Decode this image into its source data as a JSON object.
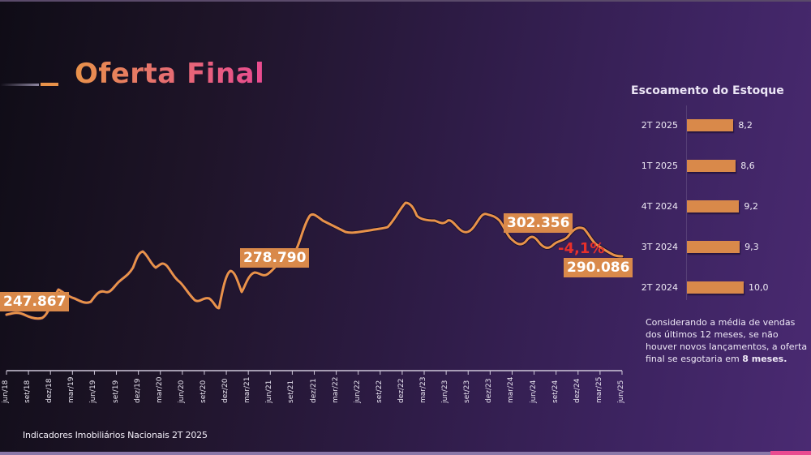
{
  "header": {
    "title_part1": "Oferta ",
    "title_part2": "Final"
  },
  "chart_data": [
    {
      "type": "line",
      "title": "Oferta Final",
      "xlabel": "",
      "ylabel": "",
      "categories": [
        "jun/18",
        "set/18",
        "dez/18",
        "mar/19",
        "jun/19",
        "set/19",
        "dez/19",
        "mar/20",
        "jun/20",
        "set/20",
        "dez/20",
        "mar/21",
        "jun/21",
        "set/21",
        "dez/21",
        "mar/22",
        "jun/22",
        "set/22",
        "dez/22",
        "mar/23",
        "jun/23",
        "set/23",
        "dez/23",
        "mar/24",
        "jun/24",
        "set/24",
        "dez/24",
        "mar/25",
        "jun/25"
      ],
      "series": [
        {
          "name": "Oferta Final",
          "color": "#e8924a",
          "values": [
            247867,
            246500,
            252000,
            254500,
            255000,
            262000,
            267000,
            262000,
            253500,
            248000,
            263000,
            264000,
            278790,
            298000,
            297000,
            295000,
            296500,
            305000,
            300000,
            299500,
            296000,
            302000,
            302356,
            294000,
            293000,
            296000,
            294500,
            291000,
            290086
          ]
        }
      ],
      "annotations": [
        {
          "label": "247.867",
          "x": "jun/18"
        },
        {
          "label": "278.790",
          "x": "jun/21"
        },
        {
          "label": "302.356",
          "x": "dez/23"
        },
        {
          "label": "290.086",
          "x": "jun/25"
        },
        {
          "label": "-4,1%",
          "color": "#e8302a"
        }
      ],
      "grid": false,
      "legend": "none"
    },
    {
      "type": "bar",
      "orientation": "horizontal",
      "title": "Escoamento do Estoque",
      "categories": [
        "2T 2025",
        "1T 2025",
        "4T 2024",
        "3T 2024",
        "2T 2024"
      ],
      "values": [
        8.2,
        8.6,
        9.2,
        9.3,
        10.0
      ],
      "value_labels": [
        "8,2",
        "8,6",
        "9,2",
        "9,3",
        "10,0"
      ],
      "color": "#d9894a"
    }
  ],
  "line_chart": {
    "labels": {
      "start": "247.867",
      "mid": "278.790",
      "peak": "302.356",
      "end": "290.086",
      "change": "-4,1%"
    },
    "x_ticks": [
      "jun/18",
      "set/18",
      "dez/18",
      "mar/19",
      "jun/19",
      "set/19",
      "dez/19",
      "mar/20",
      "jun/20",
      "set/20",
      "dez/20",
      "mar/21",
      "jun/21",
      "set/21",
      "dez/21",
      "mar/22",
      "jun/22",
      "set/22",
      "dez/22",
      "mar/23",
      "jun/23",
      "set/23",
      "dez/23",
      "mar/24",
      "jun/24",
      "set/24",
      "dez/24",
      "mar/25",
      "jun/25"
    ]
  },
  "sidebar": {
    "title": "Escoamento do Estoque",
    "bars": [
      {
        "label": "2T 2025",
        "value": "8,2",
        "num": 8.2
      },
      {
        "label": "1T 2025",
        "value": "8,6",
        "num": 8.6
      },
      {
        "label": "4T 2024",
        "value": "9,2",
        "num": 9.2
      },
      {
        "label": "3T 2024",
        "value": "9,3",
        "num": 9.3
      },
      {
        "label": "2T 2024",
        "value": "10,0",
        "num": 10.0
      }
    ],
    "note_text": "Considerando a média de vendas dos últimos 12 meses, se não houver novos lançamentos, a oferta final se esgotaria em ",
    "note_bold": "8 meses."
  },
  "footer": {
    "text": "Indicadores Imobiliários Nacionais  2T 2025"
  },
  "colors": {
    "accent_orange": "#e8924a",
    "accent_pink": "#e94b90",
    "negative_red": "#e8302a",
    "bar_orange": "#d9894a"
  }
}
